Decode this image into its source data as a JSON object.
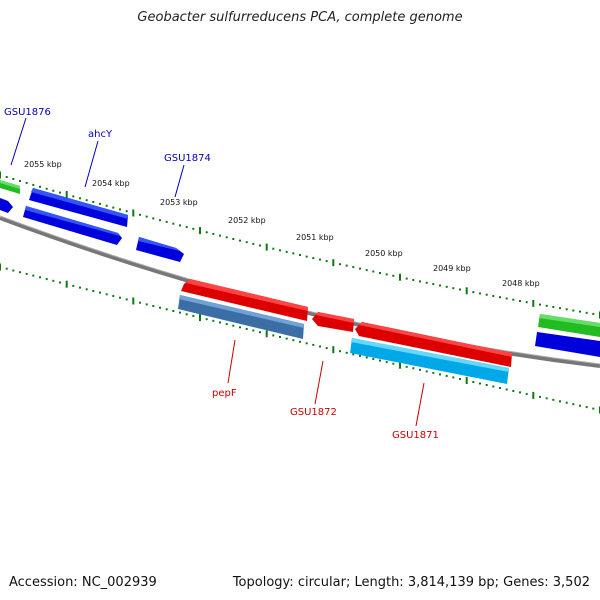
{
  "title": "Geobacter sulfurreducens PCA, complete genome",
  "footer": {
    "accession_label": "Accession:",
    "accession": "NC_002939",
    "topology_label": "Topology:",
    "topology": "circular",
    "length_label": "Length:",
    "length": "3,814,139 bp",
    "genes_label": "Genes:",
    "genes": "3,502"
  },
  "ruler": {
    "unit": "kbp",
    "ticks": [
      {
        "label": "2055 kbp"
      },
      {
        "label": "2054 kbp"
      },
      {
        "label": "2053 kbp"
      },
      {
        "label": "2052 kbp"
      },
      {
        "label": "2051 kbp"
      },
      {
        "label": "2050 kbp"
      },
      {
        "label": "2049 kbp"
      },
      {
        "label": "2048 kbp"
      }
    ]
  },
  "gene_labels": {
    "forward": [
      "GSU1876",
      "ahcY",
      "GSU1874"
    ],
    "reverse": [
      "pepF",
      "GSU1872",
      "GSU1871"
    ]
  },
  "colors": {
    "forward_gene": "#0000dd",
    "reverse_gene": "#dd0000",
    "backbone": "#777777",
    "ruler_tick": "#117711",
    "feature_green": "#22bb22",
    "feature_steelblue": "#3a6ea5",
    "feature_cyan": "#00a8e8",
    "forward_label": "#0000bb",
    "reverse_label": "#cc0000"
  }
}
